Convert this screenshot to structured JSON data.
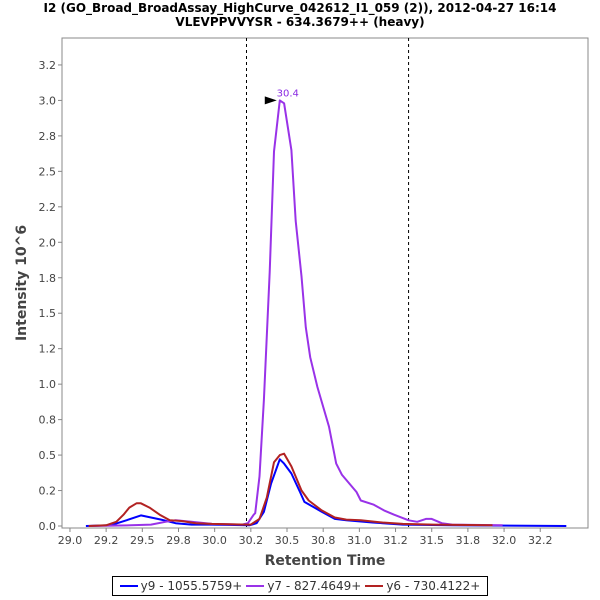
{
  "chart_data": {
    "type": "line",
    "title": "I2 (GO_Broad_BroadAssay_HighCurve_042612_I1_059 (2)), 2012-04-27 16:14",
    "subtitle": "VLEVPPVVYSR - 634.3679++ (heavy)",
    "xlabel": "Retention Time",
    "ylabel": "Intensity 10^6",
    "xlim": [
      28.945,
      32.58
    ],
    "ylim": [
      -0.014,
      3.44
    ],
    "xticks": [
      29.0,
      29.25,
      29.5,
      29.75,
      30.0,
      30.25,
      30.5,
      30.75,
      31.0,
      31.25,
      31.5,
      31.75,
      32.0,
      32.25
    ],
    "xtick_labels": [
      "29.0",
      "29.2",
      "29.5",
      "29.8",
      "30.0",
      "30.2",
      "30.5",
      "30.8",
      "31.0",
      "31.2",
      "31.5",
      "31.8",
      "32.0",
      "32.2"
    ],
    "yticks": [
      0,
      0.25,
      0.5,
      0.75,
      1.0,
      1.25,
      1.5,
      1.75,
      2.0,
      2.25,
      2.5,
      2.75,
      3.0,
      3.25
    ],
    "ytick_labels": [
      "0.0",
      "0.2",
      "0.5",
      "0.8",
      "1.0",
      "1.2",
      "1.5",
      "1.8",
      "2.0",
      "2.2",
      "2.5",
      "2.8",
      "3.0",
      "3.2"
    ],
    "grid": false,
    "legend_position": "bottom",
    "boundaries": [
      30.22,
      31.34
    ],
    "annotation": {
      "text": "30.4",
      "x": 30.45,
      "y": 3.0,
      "color": "#8a2be2"
    },
    "series": [
      {
        "name": "y9 - 1055.5759+",
        "color": "#0000ff",
        "x": [
          29.11,
          29.28,
          29.39,
          29.49,
          29.56,
          29.63,
          29.73,
          29.84,
          29.98,
          30.24,
          30.29,
          30.34,
          30.39,
          30.45,
          30.48,
          30.53,
          30.59,
          30.62,
          30.69,
          30.74,
          30.83,
          30.91,
          31.09,
          31.3,
          31.64,
          32.43
        ],
        "y": [
          0,
          0.005,
          0.04,
          0.075,
          0.06,
          0.045,
          0.02,
          0.01,
          0.01,
          0.005,
          0.02,
          0.1,
          0.3,
          0.47,
          0.44,
          0.37,
          0.24,
          0.17,
          0.13,
          0.1,
          0.05,
          0.04,
          0.025,
          0.01,
          0.005,
          0
        ]
      },
      {
        "name": "y7 - 827.4649+",
        "color": "#9932e8",
        "x": [
          29.13,
          29.42,
          29.56,
          29.66,
          29.73,
          29.84,
          29.98,
          30.19,
          30.23,
          30.27,
          30.28,
          30.31,
          30.34,
          30.38,
          30.41,
          30.45,
          30.48,
          30.53,
          30.56,
          30.6,
          30.63,
          30.66,
          30.71,
          30.79,
          30.84,
          30.88,
          30.98,
          31.01,
          31.1,
          31.17,
          31.24,
          31.34,
          31.4,
          31.46,
          31.5,
          31.57,
          31.64,
          31.99
        ],
        "y": [
          0,
          0.005,
          0.01,
          0.03,
          0.04,
          0.03,
          0.015,
          0.01,
          0.02,
          0.08,
          0.09,
          0.35,
          0.89,
          1.79,
          2.64,
          3.0,
          2.98,
          2.65,
          2.15,
          1.76,
          1.4,
          1.19,
          0.98,
          0.7,
          0.44,
          0.36,
          0.24,
          0.18,
          0.15,
          0.11,
          0.08,
          0.04,
          0.03,
          0.05,
          0.05,
          0.02,
          0.01,
          0.005
        ]
      },
      {
        "name": "y6 - 730.4122+",
        "color": "#b22222",
        "x": [
          29.13,
          29.25,
          29.32,
          29.37,
          29.41,
          29.46,
          29.49,
          29.55,
          29.62,
          29.69,
          29.77,
          29.87,
          29.98,
          30.22,
          30.25,
          30.31,
          30.36,
          30.41,
          30.45,
          30.48,
          30.53,
          30.6,
          30.65,
          30.74,
          30.83,
          30.91,
          31.01,
          31.16,
          31.3,
          31.51,
          31.92
        ],
        "y": [
          0,
          0.005,
          0.03,
          0.08,
          0.13,
          0.16,
          0.16,
          0.13,
          0.08,
          0.04,
          0.035,
          0.02,
          0.015,
          0.01,
          0.01,
          0.05,
          0.2,
          0.45,
          0.5,
          0.51,
          0.42,
          0.25,
          0.18,
          0.11,
          0.06,
          0.045,
          0.04,
          0.025,
          0.015,
          0.01,
          0.005
        ]
      }
    ]
  }
}
